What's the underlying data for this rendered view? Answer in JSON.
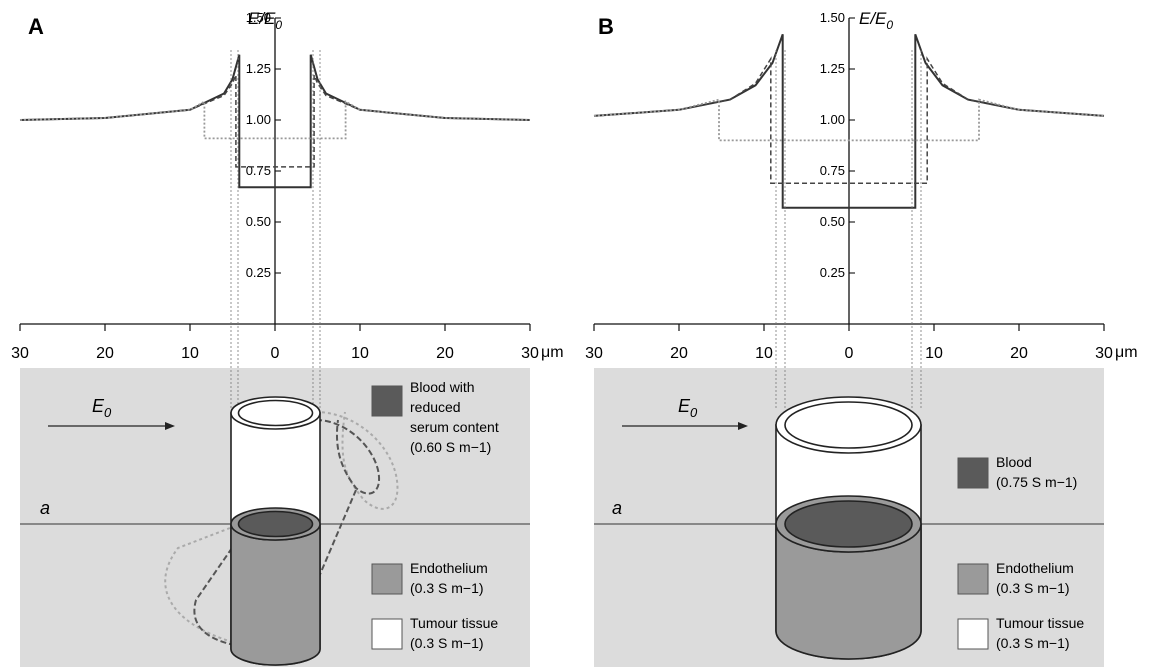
{
  "panels": [
    {
      "letter": "A",
      "chart_data": {
        "type": "line",
        "title": "",
        "ylabel": "E/E0",
        "ylabel_main": "E/E",
        "ylabel_sub": "0",
        "xlabel": "μm",
        "x_ticks": [
          -30,
          -20,
          -10,
          0,
          10,
          20,
          30
        ],
        "x_tick_labels": [
          "30",
          "20",
          "10",
          "0",
          "10",
          "20",
          "30"
        ],
        "y_ticks": [
          0.25,
          0.5,
          0.75,
          1.0,
          1.25,
          1.5
        ],
        "y_tick_labels": [
          "0.25",
          "0.50",
          "0.75",
          "1.00",
          "1.25",
          "1.50"
        ],
        "xlim": [
          -30,
          30
        ],
        "ylim": [
          0,
          1.5
        ],
        "grid": false,
        "series": [
          {
            "style": "solid",
            "x": [
              -30,
              -20,
              -10,
              -6,
              -5,
              -4.2,
              -4.2,
              4.2,
              4.2,
              5,
              6,
              10,
              20,
              30
            ],
            "y": [
              1.0,
              1.01,
              1.05,
              1.13,
              1.2,
              1.32,
              0.67,
              0.67,
              1.32,
              1.2,
              1.13,
              1.05,
              1.01,
              1.0
            ]
          },
          {
            "style": "dashed",
            "x": [
              -30,
              -20,
              -10,
              -6,
              -5,
              -4.6,
              -4.6,
              4.6,
              4.6,
              5,
              6,
              10,
              20,
              30
            ],
            "y": [
              1.0,
              1.01,
              1.05,
              1.12,
              1.18,
              1.22,
              0.77,
              0.77,
              1.22,
              1.18,
              1.12,
              1.05,
              1.01,
              1.0
            ]
          },
          {
            "style": "dotted",
            "x": [
              -30,
              -20,
              -10,
              -8.3,
              -8.3,
              8.3,
              8.3,
              10,
              20,
              30
            ],
            "y": [
              1.0,
              1.01,
              1.05,
              1.09,
              0.91,
              0.91,
              1.09,
              1.05,
              1.01,
              1.0
            ]
          }
        ]
      },
      "field_label": "E",
      "field_sub": "0",
      "plane_label": "a",
      "legend": [
        {
          "lines": [
            "Blood with",
            "reduced",
            "serum content",
            "(0.60 S m−1)"
          ],
          "color": "#5a5a5a"
        },
        {
          "lines": [
            "Endothelium",
            "(0.3 S m−1)"
          ],
          "color": "#9a9a9a"
        },
        {
          "lines": [
            "Tumour tissue",
            "(0.3 S m−1)"
          ],
          "color": "#ffffff"
        }
      ]
    },
    {
      "letter": "B",
      "chart_data": {
        "type": "line",
        "title": "",
        "ylabel": "E/E0",
        "ylabel_main": "E/E",
        "ylabel_sub": "0",
        "xlabel": "μm",
        "x_ticks": [
          -30,
          -20,
          -10,
          0,
          10,
          20,
          30
        ],
        "x_tick_labels": [
          "30",
          "20",
          "10",
          "0",
          "10",
          "20",
          "30"
        ],
        "y_ticks": [
          0.25,
          0.5,
          0.75,
          1.0,
          1.25,
          1.5
        ],
        "y_tick_labels": [
          "0.25",
          "0.50",
          "0.75",
          "1.00",
          "1.25",
          "1.50"
        ],
        "xlim": [
          -30,
          30
        ],
        "ylim": [
          0,
          1.5
        ],
        "grid": false,
        "series": [
          {
            "style": "solid",
            "x": [
              -30,
              -20,
              -14,
              -11,
              -9,
              -7.8,
              -7.8,
              7.8,
              7.8,
              9,
              11,
              14,
              20,
              30
            ],
            "y": [
              1.02,
              1.05,
              1.1,
              1.17,
              1.28,
              1.42,
              0.57,
              0.57,
              1.42,
              1.28,
              1.17,
              1.1,
              1.05,
              1.02
            ]
          },
          {
            "style": "dashed",
            "x": [
              -30,
              -20,
              -14,
              -11,
              -9.2,
              -9.2,
              9.2,
              9.2,
              11,
              14,
              20,
              30
            ],
            "y": [
              1.02,
              1.05,
              1.1,
              1.18,
              1.3,
              0.69,
              0.69,
              1.3,
              1.18,
              1.1,
              1.05,
              1.02
            ]
          },
          {
            "style": "dotted",
            "x": [
              -30,
              -20,
              -15.3,
              -15.3,
              15.3,
              15.3,
              20,
              30
            ],
            "y": [
              1.02,
              1.05,
              1.1,
              0.9,
              0.9,
              1.1,
              1.05,
              1.02
            ]
          }
        ]
      },
      "field_label": "E",
      "field_sub": "0",
      "plane_label": "a",
      "legend": [
        {
          "lines": [
            "Blood",
            "(0.75 S m−1)"
          ],
          "color": "#5a5a5a"
        },
        {
          "lines": [
            "Endothelium",
            "(0.3 S m−1)"
          ],
          "color": "#9a9a9a"
        },
        {
          "lines": [
            "Tumour tissue",
            "(0.3 S m−1)"
          ],
          "color": "#ffffff"
        }
      ]
    }
  ],
  "colors": {
    "background_block": "#dcdcdc",
    "blood": "#5a5a5a",
    "endothelium": "#9a9a9a",
    "tissue": "#ffffff",
    "curve": "#333333",
    "dotted_curve": "#999999"
  }
}
